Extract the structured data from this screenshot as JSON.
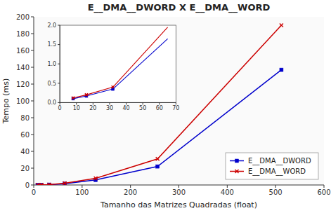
{
  "chart_data": [
    {
      "type": "line",
      "title": "E__DMA__DWORD X E__DMA__WORD",
      "xlabel": "Tamanho das Matrizes Quadradas (float)",
      "ylabel": "Tempo (ms)",
      "x": [
        8,
        16,
        32,
        64,
        128,
        256,
        512
      ],
      "series": [
        {
          "name": "E__DMA__DWORD",
          "color": "#0000cc",
          "marker": "square",
          "values": [
            0.1,
            0.17,
            0.35,
            1.5,
            6.0,
            22.0,
            137.0
          ]
        },
        {
          "name": "E__DMA__WORD",
          "color": "#cc0000",
          "marker": "x",
          "values": [
            0.12,
            0.2,
            0.4,
            2.0,
            8.0,
            31.0,
            190.0
          ]
        }
      ],
      "xlim": [
        0,
        600
      ],
      "ylim": [
        0,
        200
      ],
      "xticks": [
        0,
        100,
        200,
        300,
        400,
        500,
        600
      ],
      "yticks": [
        0,
        20,
        40,
        60,
        80,
        100,
        120,
        140,
        160,
        180,
        200
      ],
      "grid": false,
      "legend": "lower right"
    },
    {
      "type": "line",
      "series": [
        {
          "color": "#0000cc",
          "marker": "square",
          "x": [
            8,
            16,
            32
          ],
          "values": [
            0.1,
            0.17,
            0.35
          ]
        },
        {
          "color": "#cc0000",
          "marker": "x",
          "x": [
            8,
            16,
            32
          ],
          "values": [
            0.12,
            0.2,
            0.4
          ]
        },
        {
          "color": "#0000cc",
          "marker": "none",
          "x": [
            32,
            65
          ],
          "values": [
            0.35,
            1.65
          ]
        },
        {
          "color": "#cc0000",
          "marker": "none",
          "x": [
            32,
            65
          ],
          "values": [
            0.4,
            1.95
          ]
        }
      ],
      "xlim": [
        0,
        70
      ],
      "ylim": [
        0,
        2.0
      ],
      "xticks": [
        0,
        10,
        20,
        30,
        40,
        50,
        60,
        70
      ],
      "yticks": [
        {
          "value": 0,
          "label": "0.0"
        },
        0.5,
        {
          "value": 1,
          "label": "1.0"
        },
        1.5,
        {
          "value": 2,
          "label": "2.0"
        }
      ],
      "grid": false
    }
  ]
}
